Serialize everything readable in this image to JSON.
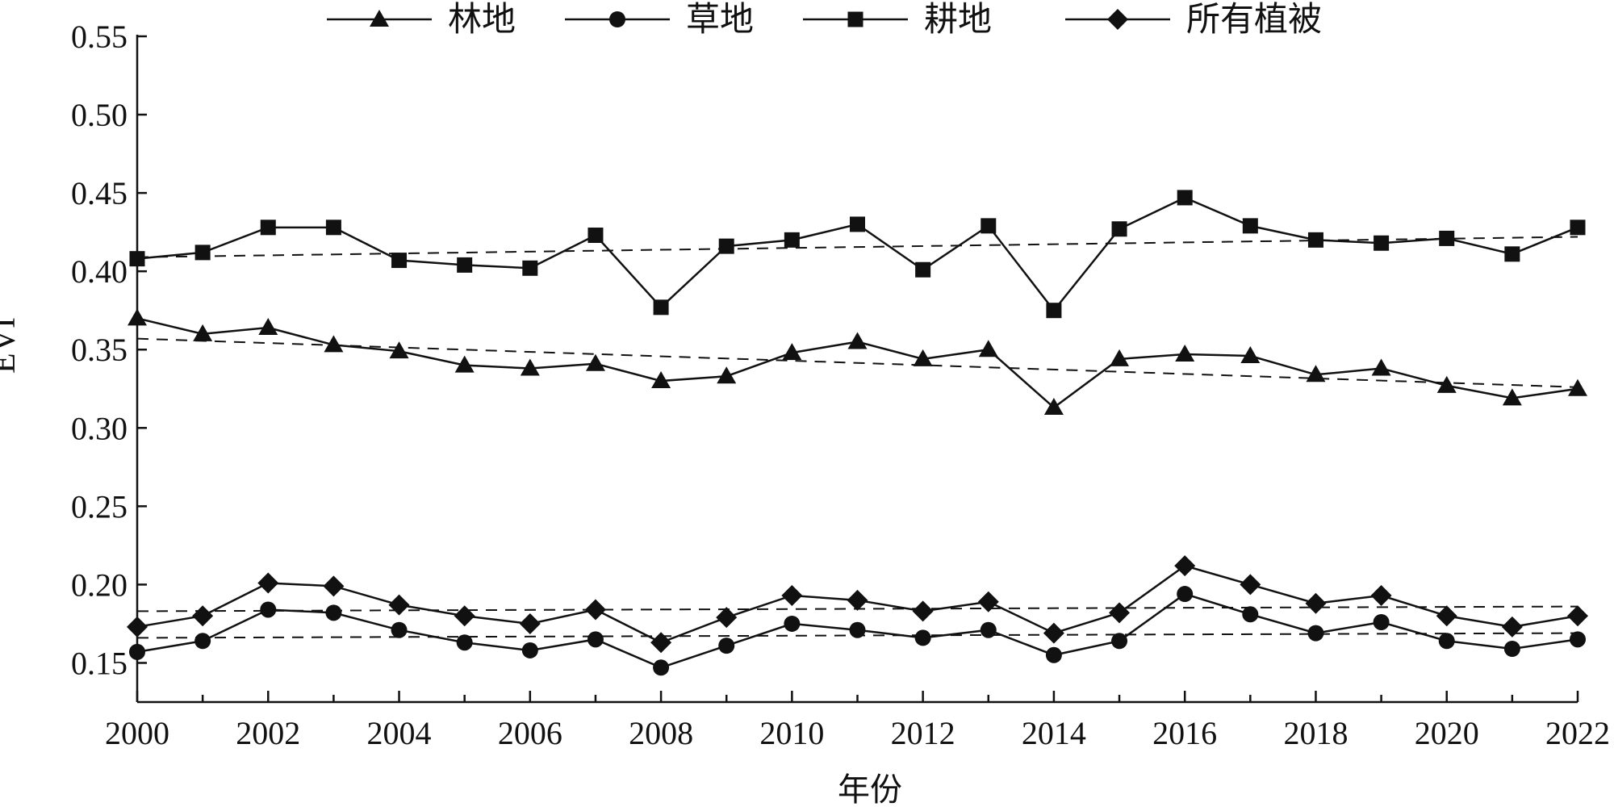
{
  "chart_data": {
    "type": "line",
    "xlabel": "年份",
    "ylabel": "EVI",
    "xlim": [
      2000,
      2022
    ],
    "ylim": [
      0.125,
      0.55
    ],
    "x_ticks": [
      "2000",
      "2002",
      "2004",
      "2006",
      "2008",
      "2010",
      "2012",
      "2014",
      "2016",
      "2018",
      "2020",
      "2022"
    ],
    "y_ticks": [
      "0.15",
      "0.20",
      "0.25",
      "0.30",
      "0.35",
      "0.40",
      "0.45",
      "0.50",
      "0.55"
    ],
    "legend_position": "top",
    "grid": false,
    "x": [
      2000,
      2001,
      2002,
      2003,
      2004,
      2005,
      2006,
      2007,
      2008,
      2009,
      2010,
      2011,
      2012,
      2013,
      2014,
      2015,
      2016,
      2017,
      2018,
      2019,
      2020,
      2021,
      2022
    ],
    "series": [
      {
        "name": "林地",
        "marker": "triangle",
        "values": [
          0.37,
          0.36,
          0.364,
          0.353,
          0.349,
          0.34,
          0.338,
          0.341,
          0.33,
          0.333,
          0.348,
          0.355,
          0.344,
          0.35,
          0.313,
          0.344,
          0.347,
          0.346,
          0.334,
          0.338,
          0.327,
          0.319,
          0.325
        ],
        "trend": [
          0.357,
          0.326
        ]
      },
      {
        "name": "草地",
        "marker": "circle",
        "values": [
          0.157,
          0.164,
          0.184,
          0.182,
          0.171,
          0.163,
          0.158,
          0.165,
          0.147,
          0.161,
          0.175,
          0.171,
          0.166,
          0.171,
          0.155,
          0.164,
          0.194,
          0.181,
          0.169,
          0.176,
          0.164,
          0.159,
          0.165
        ],
        "trend": [
          0.166,
          0.169
        ]
      },
      {
        "name": "耕地",
        "marker": "square",
        "values": [
          0.408,
          0.412,
          0.428,
          0.428,
          0.407,
          0.404,
          0.402,
          0.423,
          0.377,
          0.416,
          0.42,
          0.43,
          0.401,
          0.429,
          0.375,
          0.427,
          0.447,
          0.429,
          0.42,
          0.418,
          0.421,
          0.411,
          0.428
        ],
        "trend": [
          0.409,
          0.422
        ]
      },
      {
        "name": "所有植被",
        "marker": "diamond",
        "values": [
          0.173,
          0.18,
          0.201,
          0.199,
          0.187,
          0.18,
          0.175,
          0.184,
          0.163,
          0.179,
          0.193,
          0.19,
          0.183,
          0.189,
          0.169,
          0.182,
          0.212,
          0.2,
          0.188,
          0.193,
          0.18,
          0.173,
          0.18
        ],
        "trend": [
          0.183,
          0.186
        ]
      }
    ]
  }
}
